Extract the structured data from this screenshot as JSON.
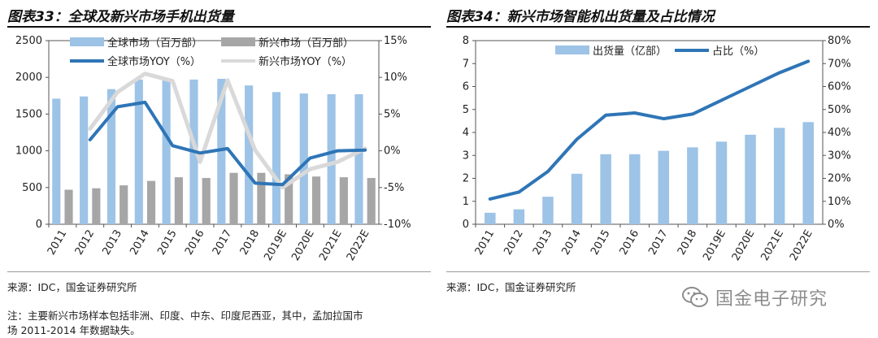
{
  "left": {
    "title": "图表33：全球及新兴市场手机出货量",
    "source": "来源：IDC，国金证券研究所",
    "note_line1": "注：主要新兴市场样本包括非洲、印度、中东、印度尼西亚，其中，孟加拉国市",
    "note_line2": "场 2011-2014 年数据缺失。"
  },
  "right": {
    "title": "图表34：新兴市场智能机出货量及占比情况",
    "source": "来源：IDC，国金证券研究所"
  },
  "watermark": {
    "text": "国金电子研究",
    "icon": "wechat-icon"
  },
  "colors": {
    "blue_bar": "#9dc3e6",
    "gray_bar": "#a6a6a6",
    "blue_line": "#2e75b6",
    "gray_line": "#d9d9d9"
  },
  "chart_data": [
    {
      "type": "bar",
      "title": "全球及新兴市场手机出货量",
      "categories": [
        "2011",
        "2012",
        "2013",
        "2014",
        "2015",
        "2016",
        "2017",
        "2018",
        "2019E",
        "2020E",
        "2021E",
        "2022E"
      ],
      "series": [
        {
          "name": "全球市场（百万部）",
          "axis": "left",
          "kind": "bar",
          "values": [
            1710,
            1740,
            1840,
            1970,
            1970,
            1970,
            1980,
            1890,
            1800,
            1780,
            1770,
            1770
          ]
        },
        {
          "name": "新兴市场（百万部）",
          "axis": "left",
          "kind": "bar",
          "values": [
            470,
            490,
            530,
            590,
            640,
            630,
            700,
            700,
            680,
            650,
            640,
            630
          ]
        },
        {
          "name": "全球市场YOY（%）",
          "axis": "right",
          "kind": "line",
          "values": [
            null,
            1.5,
            6.0,
            6.6,
            0.7,
            -0.3,
            0.3,
            -4.4,
            -4.6,
            -1.0,
            0.0,
            0.1
          ]
        },
        {
          "name": "新兴市场YOY（%）",
          "axis": "right",
          "kind": "line",
          "values": [
            null,
            3.0,
            8.0,
            10.5,
            9.5,
            -1.5,
            9.6,
            0.1,
            -5.0,
            -2.5,
            -1.5,
            0.3
          ]
        }
      ],
      "ylim": [
        0,
        2500
      ],
      "yticks": [
        0,
        500,
        1000,
        1500,
        2000,
        2500
      ],
      "ylim_right": [
        -10,
        15
      ],
      "yticks_right": [
        "-10%",
        "-5%",
        "0%",
        "5%",
        "10%",
        "15%"
      ],
      "xlabel": "",
      "ylabel": ""
    },
    {
      "type": "bar",
      "title": "新兴市场智能机出货量及占比情况",
      "categories": [
        "2011",
        "2012",
        "2013",
        "2014",
        "2015",
        "2016",
        "2017",
        "2018",
        "2019E",
        "2020E",
        "2021E",
        "2022E"
      ],
      "series": [
        {
          "name": "出货量（亿部）",
          "axis": "left",
          "kind": "bar",
          "values": [
            0.5,
            0.65,
            1.2,
            2.2,
            3.05,
            3.05,
            3.2,
            3.35,
            3.6,
            3.9,
            4.2,
            4.45
          ]
        },
        {
          "name": "占比（%）",
          "axis": "right",
          "kind": "line",
          "values": [
            11,
            14,
            23,
            37,
            47.5,
            48.5,
            46,
            48,
            54,
            60,
            66,
            71
          ]
        }
      ],
      "ylim": [
        0,
        8
      ],
      "yticks": [
        0,
        1,
        2,
        3,
        4,
        5,
        6,
        7,
        8
      ],
      "ylim_right": [
        0,
        80
      ],
      "yticks_right": [
        "0%",
        "10%",
        "20%",
        "30%",
        "40%",
        "50%",
        "60%",
        "70%",
        "80%"
      ],
      "xlabel": "",
      "ylabel": ""
    }
  ]
}
